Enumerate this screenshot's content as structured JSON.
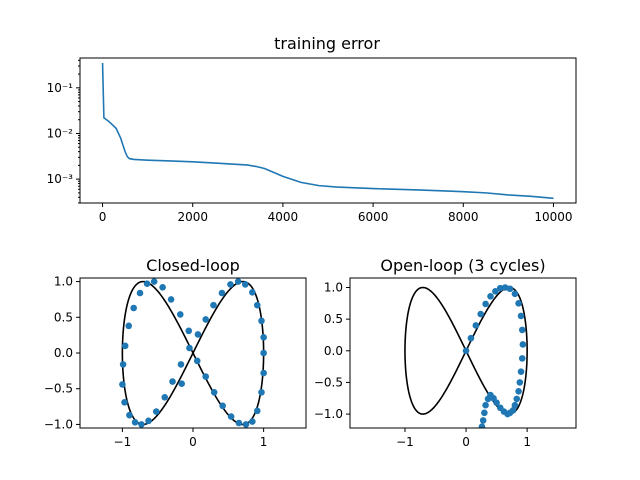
{
  "chart_data": [
    {
      "type": "line",
      "title": "training error",
      "xlabel": "",
      "ylabel": "",
      "y_scale": "log",
      "xlim": [
        -500,
        10500
      ],
      "ylim": [
        0.0003,
        0.45
      ],
      "grid": false,
      "x_ticks": [
        0,
        2000,
        4000,
        6000,
        8000,
        10000
      ],
      "x_tick_labels": [
        "0",
        "2000",
        "4000",
        "6000",
        "8000",
        "10000"
      ],
      "y_ticks": [
        0.001,
        0.01,
        0.1
      ],
      "y_tick_labels": [
        "10⁻³",
        "10⁻²",
        "10⁻¹"
      ],
      "series": [
        {
          "color": "#1f77b4",
          "x": [
            0,
            30,
            60,
            150,
            300,
            400,
            500,
            550,
            600,
            700,
            1000,
            1500,
            2000,
            2500,
            3000,
            3200,
            3400,
            3600,
            3800,
            4000,
            4400,
            4800,
            5200,
            6000,
            7000,
            7800,
            8000,
            8500,
            9000,
            9500,
            10000
          ],
          "y": [
            0.35,
            0.022,
            0.021,
            0.018,
            0.013,
            0.008,
            0.004,
            0.0031,
            0.0028,
            0.0027,
            0.0026,
            0.0025,
            0.0024,
            0.00225,
            0.0021,
            0.00205,
            0.0019,
            0.0017,
            0.0014,
            0.00115,
            0.00085,
            0.00072,
            0.00067,
            0.00062,
            0.00058,
            0.00054,
            0.00053,
            0.0005,
            0.00045,
            0.00042,
            0.00038
          ]
        }
      ]
    },
    {
      "type": "scatter",
      "title": "Closed-loop",
      "xlabel": "",
      "ylabel": "",
      "xlim": [
        -1.6,
        1.6
      ],
      "ylim": [
        -1.05,
        1.05
      ],
      "grid": false,
      "x_ticks": [
        -1,
        0,
        1
      ],
      "x_tick_labels": [
        "−1",
        "0",
        "1"
      ],
      "y_ticks": [
        -1,
        -0.5,
        0,
        0.5,
        1
      ],
      "y_tick_labels": [
        "−1.0",
        "−0.5",
        "0.0",
        "0.5",
        "1.0"
      ],
      "reference_curve": {
        "shape": "figure-eight",
        "color": "#000000"
      },
      "point_color": "#1f77b4",
      "series": [
        {
          "x": [
            1.0,
            1.0,
            0.97,
            0.91,
            0.84,
            0.74,
            0.64,
            0.53,
            0.41,
            0.29,
            0.18,
            0.07,
            -0.05,
            -0.17,
            -0.29,
            -0.4,
            -0.52,
            -0.63,
            -0.73,
            -0.82,
            -0.9,
            -0.97,
            -1.0,
            -0.99,
            -0.96,
            -0.91,
            -0.84,
            -0.75,
            -0.65,
            -0.55,
            -0.43,
            -0.31,
            -0.18,
            -0.06,
            0.06,
            0.18,
            0.3,
            0.42,
            0.54,
            0.65,
            0.75,
            0.84,
            0.91,
            0.97,
            1.0,
            -0.16
          ],
          "y": [
            0.0,
            0.22,
            0.45,
            0.67,
            0.85,
            0.96,
            1.0,
            0.96,
            0.84,
            0.67,
            0.47,
            0.26,
            0.07,
            -0.16,
            -0.4,
            -0.62,
            -0.82,
            -0.95,
            -1.0,
            -0.97,
            -0.87,
            -0.69,
            -0.44,
            -0.16,
            0.1,
            0.38,
            0.63,
            0.84,
            0.97,
            1.0,
            0.92,
            0.75,
            0.54,
            0.31,
            -0.11,
            -0.33,
            -0.55,
            -0.74,
            -0.89,
            -0.98,
            -1.0,
            -0.96,
            -0.81,
            -0.55,
            -0.28,
            -0.43
          ]
        }
      ]
    },
    {
      "type": "scatter",
      "title": "Open-loop (3 cycles)",
      "xlabel": "",
      "ylabel": "",
      "xlim": [
        -1.9,
        1.8
      ],
      "ylim": [
        -1.22,
        1.15
      ],
      "grid": false,
      "x_ticks": [
        -1,
        0,
        1
      ],
      "x_tick_labels": [
        "−1",
        "0",
        "1"
      ],
      "y_ticks": [
        -1,
        -0.5,
        0,
        0.5,
        1
      ],
      "y_tick_labels": [
        "−1.0",
        "−0.5",
        "0.0",
        "0.5",
        "1.0"
      ],
      "reference_curve": {
        "shape": "figure-eight",
        "color": "#000000"
      },
      "point_color": "#1f77b4",
      "series": [
        {
          "x": [
            0.0,
            0.08,
            0.16,
            0.24,
            0.32,
            0.4,
            0.48,
            0.56,
            0.64,
            0.72,
            0.8,
            0.86,
            0.9,
            0.92,
            0.93,
            0.92,
            0.9,
            0.88,
            0.86,
            0.83,
            0.8,
            0.77,
            0.72,
            0.68,
            0.62,
            0.56,
            0.5,
            0.45,
            0.4,
            0.36,
            0.32,
            0.3,
            0.28,
            0.26
          ],
          "y": [
            0.0,
            0.2,
            0.4,
            0.58,
            0.74,
            0.86,
            0.94,
            0.99,
            1.0,
            0.98,
            0.9,
            0.75,
            0.55,
            0.33,
            0.1,
            -0.12,
            -0.33,
            -0.5,
            -0.64,
            -0.76,
            -0.86,
            -0.94,
            -0.98,
            -1.0,
            -0.96,
            -0.9,
            -0.82,
            -0.75,
            -0.7,
            -0.76,
            -0.86,
            -0.98,
            -1.1,
            -1.2
          ]
        }
      ]
    }
  ]
}
